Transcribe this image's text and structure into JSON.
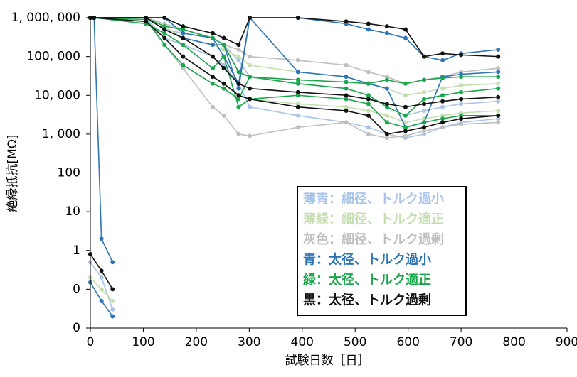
{
  "chart_data": {
    "type": "line",
    "xlabel": "試験日数［日］",
    "ylabel": "絶縁抵抗[MΩ]",
    "log_y": true,
    "grid": false,
    "xlim": [
      0,
      900
    ],
    "xticks": [
      0,
      100,
      200,
      300,
      400,
      500,
      600,
      700,
      800,
      900
    ],
    "ylim": [
      0.01,
      1000000
    ],
    "yticks": [
      {
        "value": 0.01,
        "label": "0"
      },
      {
        "value": 0.1,
        "label": "0"
      },
      1,
      10,
      100,
      {
        "value": 1000,
        "label": "1, 000"
      },
      {
        "value": 10000,
        "label": "10, 000"
      },
      {
        "value": 100000,
        "label": "100, 000"
      },
      {
        "value": 1000000,
        "label": "1, 000, 000"
      }
    ],
    "legend": "lower-right",
    "series": [
      {
        "name": "薄青：細径、トルク過小",
        "color": "#a9c4e8",
        "lines": [
          {
            "x": [
              0,
              7,
              105,
              140,
              175,
              231,
              252,
              280,
              301,
              392,
              483,
              525,
              560,
              595,
              630,
              665,
              700,
              770
            ],
            "values": [
              1000000,
              1000000,
              1000000,
              300000,
              200000,
              100000,
              60000,
              20000,
              5000,
              3000,
              2000,
              1500,
              1000,
              800,
              1000,
              1500,
              2000,
              2500
            ]
          },
          {
            "x": [
              0,
              7,
              105,
              140,
              175,
              231,
              252,
              280,
              301,
              392,
              483,
              525,
              560,
              595,
              630,
              665,
              700,
              770
            ],
            "values": [
              1000000,
              1000000,
              1000000,
              500000,
              400000,
              300000,
              200000,
              80000,
              30000,
              20000,
              15000,
              10000,
              5000,
              3000,
              4000,
              5000,
              6000,
              7000
            ]
          },
          {
            "x": [
              0,
              21,
              42
            ],
            "values": [
              0.5,
              0.2,
              0.03
            ]
          }
        ]
      },
      {
        "name": "薄緑：細径、トルク適正",
        "color": "#c5dfb0",
        "lines": [
          {
            "x": [
              0,
              7,
              105,
              140,
              175,
              231,
              252,
              280,
              301,
              392,
              483,
              525,
              560,
              595,
              630,
              665,
              700,
              770
            ],
            "values": [
              1000000,
              1000000,
              1000000,
              600000,
              300000,
              200000,
              150000,
              100000,
              60000,
              40000,
              30000,
              20000,
              15000,
              10000,
              12000,
              15000,
              18000,
              20000
            ]
          },
          {
            "x": [
              0,
              7,
              105,
              140,
              175,
              231,
              252,
              280,
              301,
              392,
              483,
              525,
              560,
              595,
              630,
              665,
              700,
              770
            ],
            "values": [
              1000000,
              1000000,
              800000,
              300000,
              100000,
              30000,
              20000,
              10000,
              8000,
              6000,
              5000,
              4000,
              3000,
              2000,
              2500,
              3000,
              3500,
              4000
            ]
          },
          {
            "x": [
              0,
              21,
              42
            ],
            "values": [
              0.2,
              0.1,
              0.05
            ]
          }
        ]
      },
      {
        "name": "灰色：細径、トルク過剰",
        "color": "#bfbfbf",
        "lines": [
          {
            "x": [
              0,
              7,
              105,
              140,
              175,
              231,
              252,
              280,
              301,
              392,
              483,
              525,
              560,
              595,
              630,
              665,
              700,
              770
            ],
            "values": [
              1000000,
              1000000,
              1000000,
              700000,
              500000,
              300000,
              200000,
              150000,
              100000,
              80000,
              60000,
              40000,
              30000,
              20000,
              25000,
              30000,
              40000,
              50000
            ]
          },
          {
            "x": [
              0,
              7,
              105,
              140,
              175,
              231,
              252,
              280,
              301,
              392,
              483,
              525,
              560,
              595,
              630,
              665,
              700,
              770
            ],
            "values": [
              1000000,
              1000000,
              1000000,
              200000,
              50000,
              5000,
              3000,
              1000,
              900,
              1500,
              2000,
              1000,
              800,
              900,
              1200,
              1500,
              1800,
              2000
            ]
          }
        ]
      },
      {
        "name": "青：太径、トルク過小",
        "color": "#2e75b6",
        "lines": [
          {
            "x": [
              0,
              7,
              21,
              42
            ],
            "values": [
              1000000,
              1000000,
              2,
              0.5
            ]
          },
          {
            "x": [
              0,
              7,
              105,
              140,
              175,
              231,
              252,
              280,
              301,
              392,
              483,
              525,
              560,
              595,
              630,
              665,
              700,
              770
            ],
            "values": [
              1000000,
              1000000,
              1000000,
              500000,
              300000,
              200000,
              200000,
              15000,
              1000000,
              40000,
              30000,
              20000,
              15000,
              1500,
              2000,
              30000,
              35000,
              40000
            ]
          },
          {
            "x": [
              0,
              7,
              105,
              140,
              175,
              231,
              252,
              280,
              301,
              392,
              483,
              525,
              560,
              595,
              630,
              665,
              700,
              770
            ],
            "values": [
              1000000,
              1000000,
              1000000,
              1000000,
              400000,
              300000,
              100000,
              20000,
              1000000,
              1000000,
              700000,
              500000,
              400000,
              300000,
              100000,
              80000,
              120000,
              150000
            ]
          },
          {
            "x": [
              0,
              21,
              42
            ],
            "values": [
              0.15,
              0.05,
              0.02
            ]
          }
        ]
      },
      {
        "name": "緑：太径、トルク適正",
        "color": "#1aa64a",
        "lines": [
          {
            "x": [
              0,
              7,
              105,
              140,
              175,
              231,
              252,
              280,
              301,
              392,
              483,
              525,
              560,
              595,
              630,
              665,
              700,
              770
            ],
            "values": [
              1000000,
              1000000,
              900000,
              200000,
              60000,
              20000,
              15000,
              8000,
              30000,
              20000,
              15000,
              10000,
              5000,
              3000,
              8000,
              10000,
              12000,
              15000
            ]
          },
          {
            "x": [
              0,
              7,
              105,
              140,
              175,
              231,
              252,
              280,
              301,
              392,
              483,
              525,
              560,
              595,
              630,
              665,
              700,
              770
            ],
            "values": [
              1000000,
              1000000,
              700000,
              400000,
              200000,
              50000,
              100000,
              5000,
              8000,
              10000,
              8000,
              6000,
              2000,
              1500,
              2000,
              2500,
              3000,
              3000
            ]
          },
          {
            "x": [
              0,
              7,
              105,
              140,
              175,
              231,
              252,
              280,
              301,
              392,
              483,
              525,
              560,
              595,
              630,
              665,
              700,
              770
            ],
            "values": [
              1000000,
              1000000,
              1000000,
              600000,
              500000,
              300000,
              200000,
              40000,
              30000,
              25000,
              22000,
              20000,
              25000,
              20000,
              25000,
              28000,
              30000,
              30000
            ]
          }
        ]
      },
      {
        "name": "黒：太径、トルク過剰",
        "color": "#111111",
        "lines": [
          {
            "x": [
              0,
              7,
              105,
              140,
              175,
              231,
              252,
              280,
              301,
              392,
              483,
              525,
              560,
              595,
              630,
              665,
              700,
              770
            ],
            "values": [
              1000000,
              1000000,
              800000,
              300000,
              100000,
              30000,
              20000,
              10000,
              8000,
              5000,
              4000,
              3000,
              1000,
              1200,
              1500,
              2000,
              2500,
              3000
            ]
          },
          {
            "x": [
              0,
              7,
              105,
              140,
              175,
              231,
              252,
              280,
              301,
              392,
              483,
              525,
              560,
              595,
              630,
              665,
              700,
              770
            ],
            "values": [
              1000000,
              1000000,
              1000000,
              500000,
              300000,
              100000,
              50000,
              20000,
              15000,
              12000,
              10000,
              8000,
              6000,
              5000,
              6000,
              7000,
              8000,
              9000
            ]
          },
          {
            "x": [
              0,
              7,
              105,
              140,
              175,
              231,
              252,
              280,
              301,
              392,
              483,
              525,
              560,
              595,
              630,
              665,
              700,
              770
            ],
            "values": [
              1000000,
              1000000,
              1000000,
              1000000,
              600000,
              400000,
              300000,
              200000,
              1000000,
              1000000,
              800000,
              700000,
              600000,
              500000,
              100000,
              120000,
              110000,
              100000
            ]
          },
          {
            "x": [
              0,
              21,
              42
            ],
            "values": [
              0.8,
              0.3,
              0.1
            ]
          }
        ]
      }
    ]
  }
}
